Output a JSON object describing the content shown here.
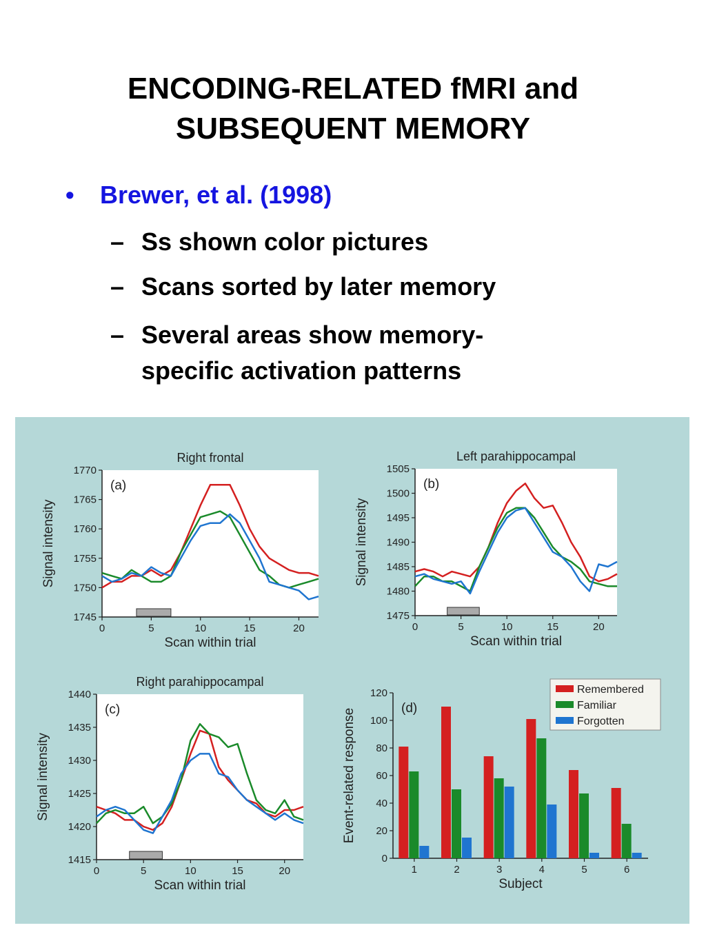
{
  "slide": {
    "title_line1": "ENCODING-RELATED fMRI and",
    "title_line2": "SUBSEQUENT MEMORY",
    "bullet": "Brewer, et al. (1998)",
    "bullet_marker": "•",
    "subbullet_marker": "–",
    "subbullets": [
      "Ss shown color pictures",
      "Scans sorted by later memory",
      "Several areas show memory-",
      "specific activation patterns"
    ],
    "colors": {
      "bullet": "#1515e0",
      "figure_bg": "#b5d8d8",
      "plot_bg": "#ffffff"
    }
  },
  "chart_data": [
    {
      "type": "line",
      "title": "Right frontal",
      "panel_label": "(a)",
      "xlabel": "Scan within trial",
      "ylabel": "Signal intensity",
      "xlim": [
        0,
        22
      ],
      "ylim": [
        1745,
        1770
      ],
      "xticks": [
        0,
        5,
        10,
        15,
        20
      ],
      "yticks": [
        1745,
        1750,
        1755,
        1760,
        1765,
        1770
      ],
      "stimulus_bar": [
        3.5,
        7
      ],
      "x": [
        0,
        1,
        2,
        3,
        4,
        5,
        6,
        7,
        8,
        9,
        10,
        11,
        12,
        13,
        14,
        15,
        16,
        17,
        18,
        19,
        20,
        21,
        22
      ],
      "series": [
        {
          "color": "#d42020",
          "values": [
            1750,
            1751,
            1751,
            1752,
            1752,
            1753,
            1752,
            1753,
            1756,
            1760,
            1764,
            1767.5,
            1767.5,
            1767.5,
            1764,
            1760,
            1757,
            1755,
            1754,
            1753,
            1752.5,
            1752.5,
            1752
          ]
        },
        {
          "color": "#1a8a2a",
          "values": [
            1752.5,
            1752,
            1751.5,
            1753,
            1752,
            1751,
            1751,
            1752,
            1756,
            1759,
            1762,
            1762.5,
            1763,
            1762,
            1759,
            1756,
            1753,
            1752,
            1750.5,
            1750,
            1750.5,
            1751,
            1751.5
          ]
        },
        {
          "color": "#1f75d0",
          "values": [
            1752,
            1751,
            1751.5,
            1752.5,
            1752,
            1753.5,
            1752.5,
            1752,
            1755,
            1758,
            1760.5,
            1761,
            1761,
            1762.5,
            1761,
            1758,
            1755,
            1751,
            1750.5,
            1750,
            1749.5,
            1748,
            1748.5
          ]
        }
      ]
    },
    {
      "type": "line",
      "title": "Left parahippocampal",
      "panel_label": "(b)",
      "xlabel": "Scan within trial",
      "ylabel": "Signal intensity",
      "xlim": [
        0,
        22
      ],
      "ylim": [
        1475,
        1505
      ],
      "xticks": [
        0,
        5,
        10,
        15,
        20
      ],
      "yticks": [
        1475,
        1480,
        1485,
        1490,
        1495,
        1500,
        1505
      ],
      "stimulus_bar": [
        3.5,
        7
      ],
      "x": [
        0,
        1,
        2,
        3,
        4,
        5,
        6,
        7,
        8,
        9,
        10,
        11,
        12,
        13,
        14,
        15,
        16,
        17,
        18,
        19,
        20,
        21,
        22
      ],
      "series": [
        {
          "color": "#d42020",
          "values": [
            1484,
            1484.5,
            1484,
            1483,
            1484,
            1483.5,
            1483,
            1485,
            1489,
            1494,
            1498,
            1500.5,
            1502,
            1499,
            1497,
            1497.5,
            1494,
            1490,
            1487,
            1483,
            1482,
            1482.5,
            1483.5
          ]
        },
        {
          "color": "#1a8a2a",
          "values": [
            1481,
            1483,
            1483,
            1482,
            1482,
            1481,
            1480,
            1485,
            1489,
            1493,
            1496,
            1497,
            1497,
            1495,
            1492,
            1489,
            1487,
            1486,
            1484.5,
            1482,
            1481.5,
            1481,
            1481
          ]
        },
        {
          "color": "#1f75d0",
          "values": [
            1483,
            1483.5,
            1482.5,
            1482,
            1481.5,
            1482,
            1479.5,
            1484,
            1488,
            1492,
            1495,
            1496.5,
            1497,
            1494,
            1491,
            1488,
            1487,
            1485,
            1482,
            1480,
            1485.5,
            1485,
            1486
          ]
        }
      ]
    },
    {
      "type": "line",
      "title": "Right parahippocampal",
      "panel_label": "(c)",
      "xlabel": "Scan within trial",
      "ylabel": "Signal intensity",
      "xlim": [
        0,
        22
      ],
      "ylim": [
        1415,
        1440
      ],
      "xticks": [
        0,
        5,
        10,
        15,
        20
      ],
      "yticks": [
        1415,
        1420,
        1425,
        1430,
        1435,
        1440
      ],
      "stimulus_bar": [
        3.5,
        7
      ],
      "x": [
        0,
        1,
        2,
        3,
        4,
        5,
        6,
        7,
        8,
        9,
        10,
        11,
        12,
        13,
        14,
        15,
        16,
        17,
        18,
        19,
        20,
        21,
        22
      ],
      "series": [
        {
          "color": "#d42020",
          "values": [
            1423,
            1422.5,
            1422,
            1421,
            1421,
            1420,
            1419.5,
            1420.5,
            1423,
            1427,
            1431,
            1434.5,
            1434,
            1429,
            1427,
            1425.5,
            1424,
            1423.5,
            1422,
            1421.5,
            1422.5,
            1422.5,
            1423
          ]
        },
        {
          "color": "#1a8a2a",
          "values": [
            1420.5,
            1422,
            1422.5,
            1422,
            1422,
            1423,
            1420.5,
            1421.5,
            1423.5,
            1427,
            1433,
            1435.5,
            1434,
            1433.5,
            1432,
            1432.5,
            1428,
            1424,
            1422.5,
            1422,
            1424,
            1421.5,
            1421
          ]
        },
        {
          "color": "#1f75d0",
          "values": [
            1421.5,
            1422.5,
            1423,
            1422.5,
            1421,
            1419.5,
            1419,
            1421.5,
            1424,
            1428,
            1430,
            1431,
            1431,
            1428,
            1427.5,
            1425.5,
            1424,
            1423,
            1422,
            1421,
            1422,
            1421,
            1420.5
          ]
        }
      ]
    },
    {
      "type": "bar",
      "panel_label": "(d)",
      "xlabel": "Subject",
      "ylabel": "Event-related response",
      "categories": [
        "1",
        "2",
        "3",
        "4",
        "5",
        "6"
      ],
      "ylim": [
        0,
        120
      ],
      "yticks": [
        0,
        20,
        40,
        60,
        80,
        100,
        120
      ],
      "legend_position": "top-right",
      "series": [
        {
          "name": "Remembered",
          "color": "#d42020",
          "values": [
            81,
            110,
            74,
            101,
            64,
            51
          ]
        },
        {
          "name": "Familiar",
          "color": "#1a8a2a",
          "values": [
            63,
            50,
            58,
            87,
            47,
            25
          ]
        },
        {
          "name": "Forgotten",
          "color": "#1f75d0",
          "values": [
            9,
            15,
            52,
            39,
            4,
            4
          ]
        }
      ]
    }
  ]
}
